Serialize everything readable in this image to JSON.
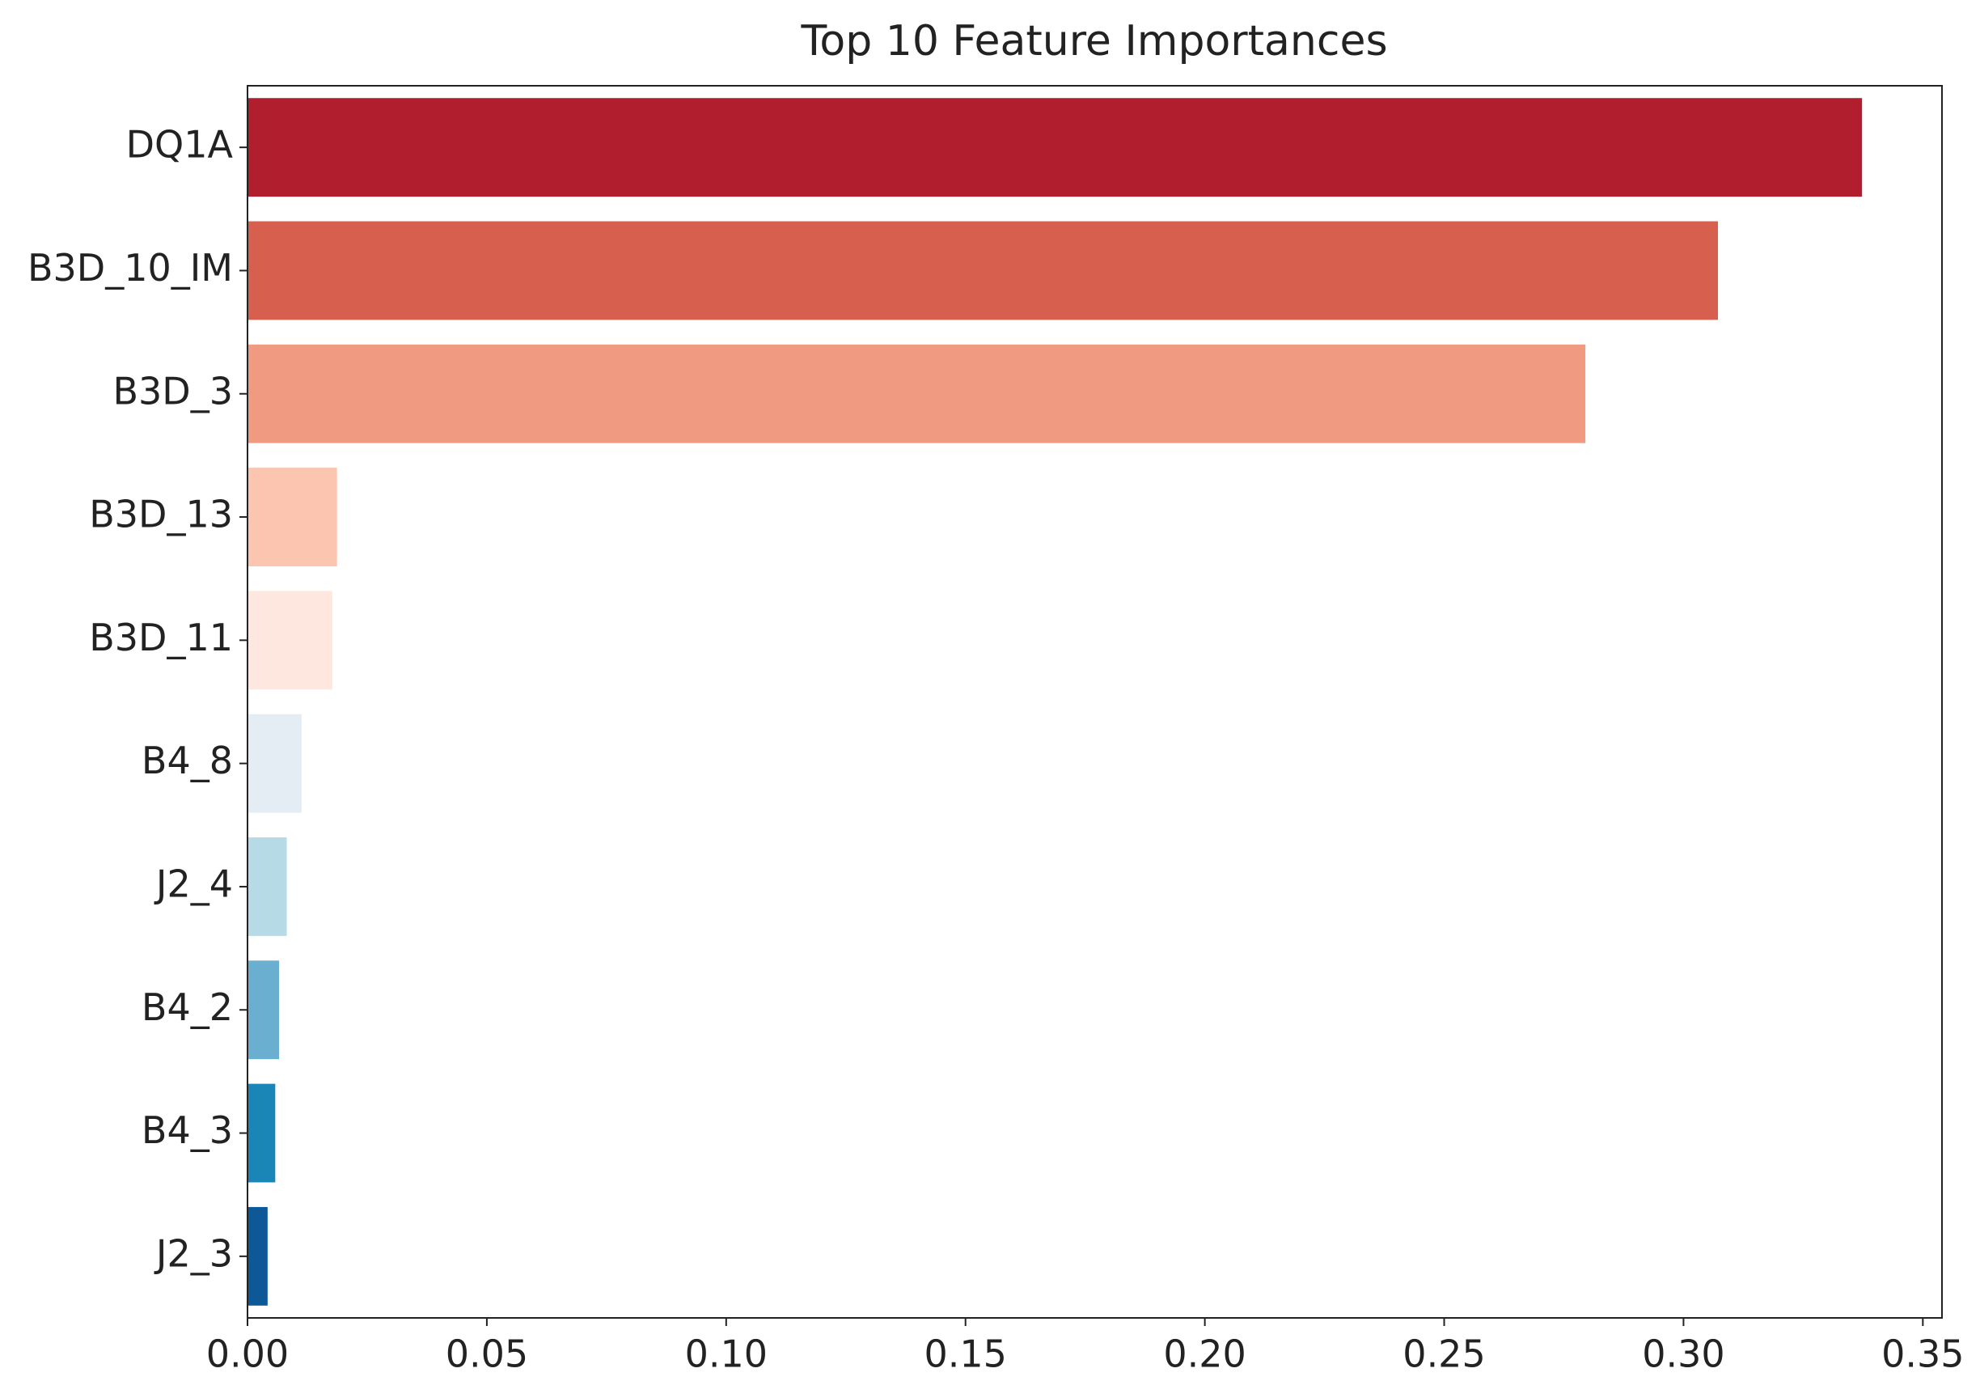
{
  "chart_data": {
    "type": "barh",
    "title": "Top 10 Feature Importances",
    "categories": [
      "DQ1A",
      "B3D_10_IM",
      "B3D_3",
      "B3D_13",
      "B3D_11",
      "B4_8",
      "J2_4",
      "B4_2",
      "B4_3",
      "J2_3"
    ],
    "values": [
      0.3373,
      0.3072,
      0.2795,
      0.0187,
      0.0177,
      0.0113,
      0.0082,
      0.0066,
      0.0058,
      0.0042
    ],
    "colors": [
      "#b11f2e",
      "#d6604d",
      "#f09a82",
      "#fcc5b0",
      "#fde7df",
      "#e4edf4",
      "#b6dae6",
      "#6aafcf",
      "#1a86b8",
      "#0d5896"
    ],
    "xlim": [
      0,
      0.354
    ],
    "xticks": [
      {
        "value": 0,
        "label": "0.00"
      },
      0.05,
      {
        "value": 0.1,
        "label": "0.10"
      },
      0.15,
      {
        "value": 0.2,
        "label": "0.20"
      },
      0.25,
      {
        "value": 0.3,
        "label": "0.30"
      },
      0.35
    ],
    "grid": false
  }
}
